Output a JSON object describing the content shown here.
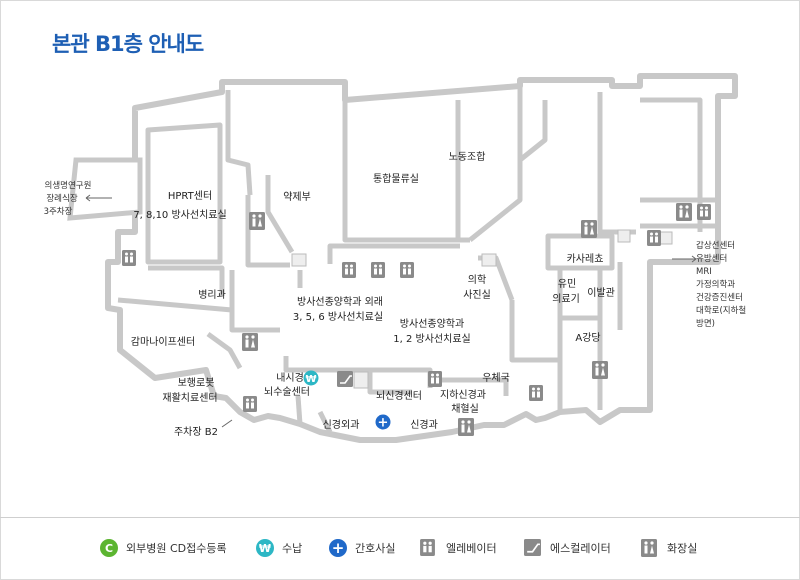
{
  "title": "본관 B1층 안내도",
  "rooms": {
    "hprt": "HPRT센터",
    "hprt_sub": "7, 8,10 방사선치료실",
    "pharmacy": "약제부",
    "logistics": "통합물류실",
    "union": "노동조합",
    "pathology": "병리과",
    "radonc_outpatient": "방사선종양학과 외래",
    "radonc_outpatient_sub": "3, 5, 6 방사선치료실",
    "radonc": "방사선종양학과",
    "radonc_sub": "1, 2 방사선치료실",
    "photo_line1": "의학",
    "photo_line2": "사진실",
    "cafeteria": "카사레쵸",
    "genetics_line1": "유민",
    "genetics_line2": "의료기",
    "barber": "이발관",
    "auditorium": "A강당",
    "gamma": "감마나이프센터",
    "robot_line1": "보행로봇",
    "robot_line2": "재활치료센터",
    "endoscopy_line1": "내시경",
    "endoscopy_line2": "뇌수술센터",
    "neuro_center": "뇌신경센터",
    "neurophys_line1": "지하신경과",
    "neurophys_line2": "채혈실",
    "post_office": "우체국",
    "neurosurgery": "신경외과",
    "neurology": "신경과"
  },
  "pointers": {
    "west_line1": "의생명연구원",
    "west_line2": "장례식장",
    "west_line3": "3주차장",
    "parking_b2": "주차장 B2",
    "east_line1": "갑상선센터",
    "east_line2": "유방센터",
    "east_line3": "MRI",
    "east_line4": "가정의학과",
    "east_line5": "건강증진센터",
    "east_line6": "대학로(지하철",
    "east_line7": "방면)"
  },
  "legend": [
    {
      "icon": "c-circle-icon",
      "glyph": "C",
      "label": "외부병원 CD접수등록"
    },
    {
      "icon": "won-circle-icon",
      "glyph": "₩",
      "label": "수납"
    },
    {
      "icon": "cross-circle-icon",
      "glyph": "+",
      "label": "간호사실"
    },
    {
      "icon": "elevator-icon",
      "glyph": "",
      "label": "엘레베이터"
    },
    {
      "icon": "escalator-icon",
      "glyph": "",
      "label": "에스컬레이터"
    },
    {
      "icon": "restroom-icon",
      "glyph": "",
      "label": "화장실"
    }
  ],
  "colors": {
    "title": "#1e5fb4",
    "wall": "#c8c8c8",
    "floor": "#ffffff",
    "cd_green": "#5cb531",
    "payment_teal": "#2db7c5",
    "nurse_blue": "#2069c9",
    "icon_gray": "#8a8a8a"
  }
}
